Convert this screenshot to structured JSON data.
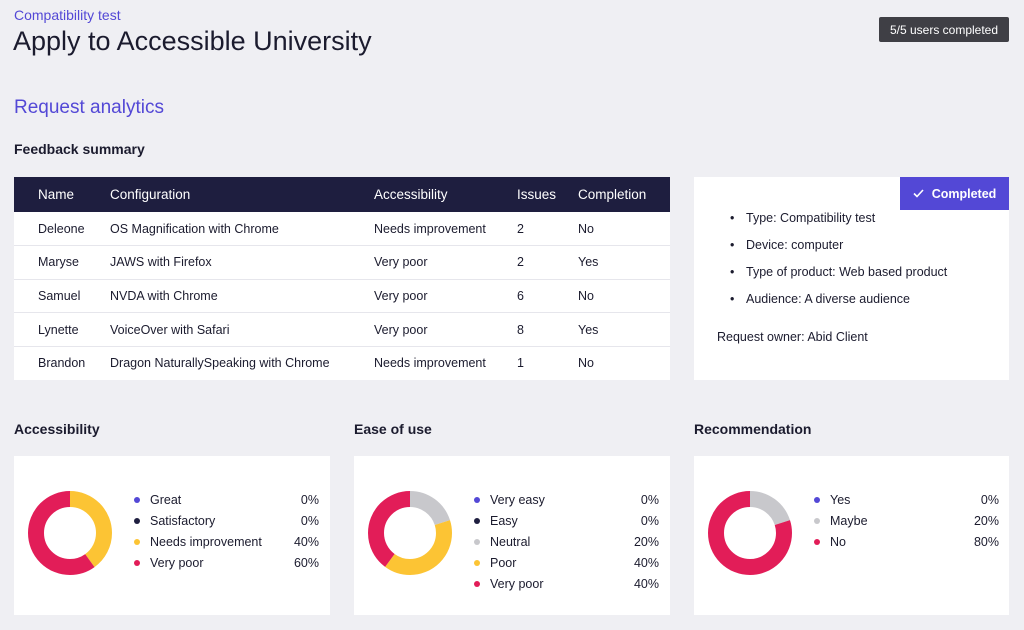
{
  "header": {
    "eyebrow": "Compatibility test",
    "title": "Apply to Accessible University",
    "status_pill": "5/5 users completed"
  },
  "section_title": "Request analytics",
  "feedback": {
    "heading": "Feedback summary",
    "columns": [
      "Name",
      "Configuration",
      "Accessibility",
      "Issues",
      "Completion"
    ],
    "rows": [
      [
        "Deleone",
        "OS Magnification with Chrome",
        "Needs improvement",
        "2",
        "No"
      ],
      [
        "Maryse",
        "JAWS with Firefox",
        "Very poor",
        "2",
        "Yes"
      ],
      [
        "Samuel",
        "NVDA with Chrome",
        "Very poor",
        "6",
        "No"
      ],
      [
        "Lynette",
        "VoiceOver with Safari",
        "Very poor",
        "8",
        "Yes"
      ],
      [
        "Brandon",
        "Dragon NaturallySpeaking with Chrome",
        "Needs improvement",
        "1",
        "No"
      ]
    ]
  },
  "details": {
    "badge": "Completed",
    "badge_icon": "check-icon",
    "items": [
      "Type: Compatibility test",
      "Device: computer",
      "Type of product: Web based product",
      "Audience: A diverse audience"
    ],
    "owner": "Request owner: Abid Client"
  },
  "colors": {
    "great": "#5348d6",
    "satisfactory": "#1e1e3f",
    "needs_improvement": "#fcc434",
    "very_poor": "#e21d58",
    "neutral": "#c8c8cc"
  },
  "panels": [
    {
      "heading": "Accessibility",
      "items": [
        {
          "label": "Great",
          "percent": "0%",
          "value": 0,
          "color": "#5348d6"
        },
        {
          "label": "Satisfactory",
          "percent": "0%",
          "value": 0,
          "color": "#1e1e3f"
        },
        {
          "label": "Needs improvement",
          "percent": "40%",
          "value": 40,
          "color": "#fcc434"
        },
        {
          "label": "Very poor",
          "percent": "60%",
          "value": 60,
          "color": "#e21d58"
        }
      ]
    },
    {
      "heading": "Ease of use",
      "items": [
        {
          "label": "Very easy",
          "percent": "0%",
          "value": 0,
          "color": "#5348d6"
        },
        {
          "label": "Easy",
          "percent": "0%",
          "value": 0,
          "color": "#1e1e3f"
        },
        {
          "label": "Neutral",
          "percent": "20%",
          "value": 20,
          "color": "#c8c8cc"
        },
        {
          "label": "Poor",
          "percent": "40%",
          "value": 40,
          "color": "#fcc434"
        },
        {
          "label": "Very poor",
          "percent": "40%",
          "value": 40,
          "color": "#e21d58"
        }
      ]
    },
    {
      "heading": "Recommendation",
      "items": [
        {
          "label": "Yes",
          "percent": "0%",
          "value": 0,
          "color": "#5348d6"
        },
        {
          "label": "Maybe",
          "percent": "20%",
          "value": 20,
          "color": "#c8c8cc"
        },
        {
          "label": "No",
          "percent": "80%",
          "value": 80,
          "color": "#e21d58"
        }
      ]
    }
  ]
}
